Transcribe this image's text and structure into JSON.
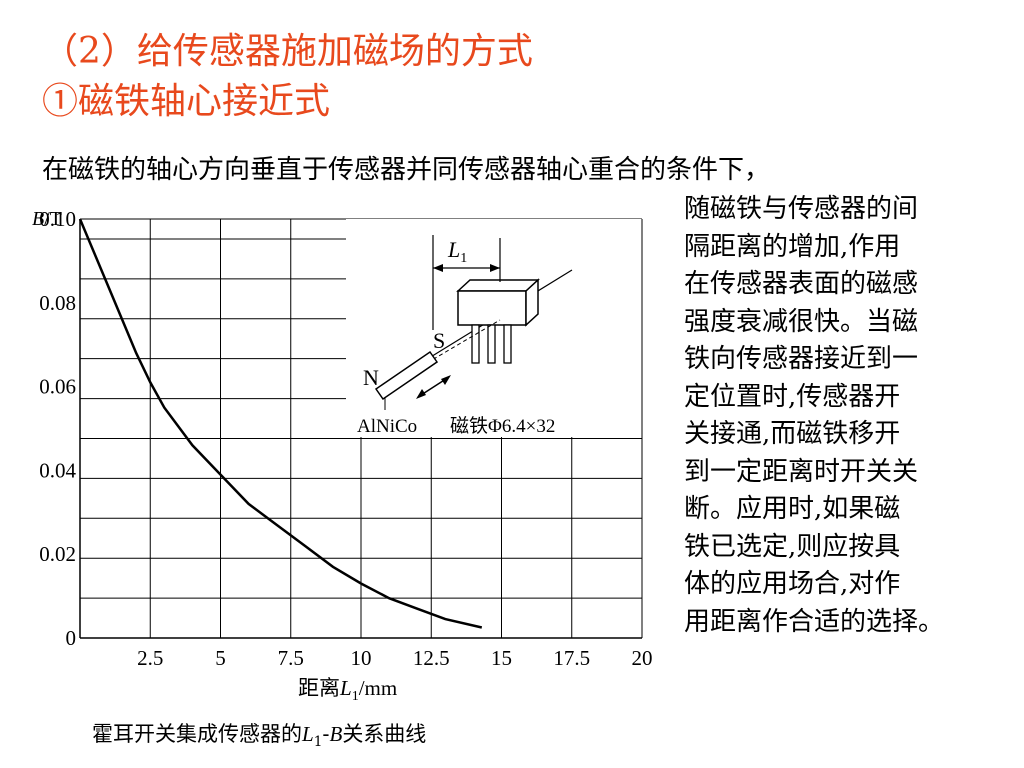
{
  "slide": {
    "title_line1": "（2）给传感器施加磁场的方式",
    "title_line2": "①磁铁轴心接近式",
    "intro": "在磁铁的轴心方向垂直于传感器并同传感器轴心重合的条件下，",
    "side_lines": [
      "随磁铁与传感器的间",
      "隔距离的增加,作用",
      "在传感器表面的磁感",
      "强度衰减很快。当磁",
      "铁向传感器接近到一",
      "定位置时,传感器开",
      "关接通,而磁铁移开",
      "到一定距离时开关关",
      "断。应用时,如果磁",
      "铁已选定,则应按具",
      "体的应用场合,对作",
      "用距离作合适的选择。"
    ],
    "caption": {
      "prefix": "霍耳开关集成传感器的",
      "L": "L",
      "sub": "1",
      "dash": "-",
      "B": "B",
      "suffix": "关系曲线"
    }
  },
  "diagram": {
    "label_L": "L",
    "label_L_sub": "1",
    "label_S": "S",
    "label_N": "N",
    "label_alnico": "AlNiCo",
    "label_magnet": "磁铁Φ6.4×32"
  },
  "chart_data": {
    "type": "line",
    "xlabel_prefix": "距离",
    "xlabel_var": "L",
    "xlabel_sub": "1",
    "xlabel_unit": "/mm",
    "ylabel_var": "B",
    "ylabel_unit": "/T",
    "xlim": [
      0,
      20
    ],
    "ylim": [
      0,
      0.1
    ],
    "x_ticks": [
      "2.5",
      "5",
      "7.5",
      "10",
      "12.5",
      "15",
      "17.5",
      "20"
    ],
    "y_ticks": [
      "0",
      "0.02",
      "0.04",
      "0.06",
      "0.08",
      "0.10"
    ],
    "grid": true,
    "series": [
      {
        "x": [
          0,
          1,
          2,
          2.5,
          3,
          4,
          5,
          6,
          7,
          8,
          9,
          10,
          11,
          12,
          13,
          14.3
        ],
        "y": [
          0.1,
          0.084,
          0.068,
          0.061,
          0.055,
          0.046,
          0.039,
          0.032,
          0.027,
          0.022,
          0.017,
          0.013,
          0.0095,
          0.007,
          0.0045,
          0.0025
        ]
      }
    ]
  }
}
